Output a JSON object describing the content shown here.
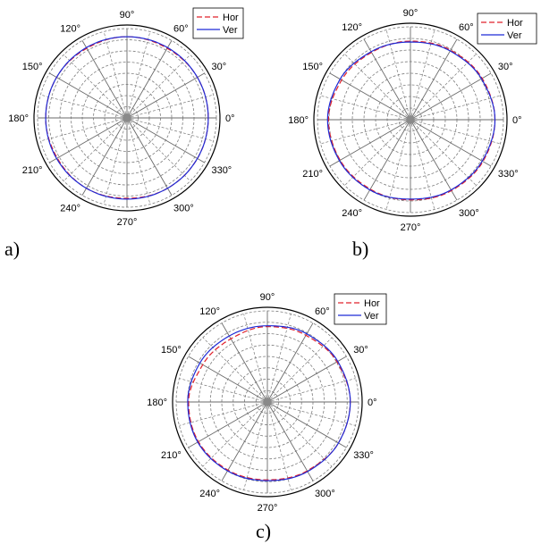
{
  "colors": {
    "hor": "#e0202a",
    "ver": "#1f2bd6",
    "grid": "#7d7d7d",
    "frame": "#000000"
  },
  "chart_data": [
    {
      "type": "polar-line",
      "panel_label": "a)",
      "angle_ticks": [
        "0°",
        "30°",
        "60°",
        "90°",
        "120°",
        "150°",
        "180°",
        "210°",
        "240°",
        "270°",
        "300°",
        "330°"
      ],
      "rlim": [
        0,
        1.1
      ],
      "grid": true,
      "legend": {
        "placement": "top-right"
      },
      "series": [
        {
          "name": "Hor",
          "style": "dashed",
          "theta": [
            0,
            30,
            60,
            90,
            120,
            150,
            180,
            210,
            240,
            270,
            300,
            330,
            360
          ],
          "r": [
            1.0,
            1.0,
            0.99,
            1.0,
            0.99,
            1.0,
            1.0,
            0.99,
            1.0,
            0.99,
            1.0,
            1.0,
            1.0
          ]
        },
        {
          "name": "Ver",
          "style": "solid",
          "theta": [
            0,
            30,
            60,
            90,
            120,
            150,
            180,
            210,
            240,
            270,
            300,
            330,
            360
          ],
          "r": [
            1.0,
            1.0,
            1.0,
            1.0,
            1.0,
            1.0,
            1.0,
            1.0,
            1.0,
            1.0,
            1.0,
            1.0,
            1.0
          ]
        }
      ]
    },
    {
      "type": "polar-line",
      "panel_label": "b)",
      "angle_ticks": [
        "0°",
        "30°",
        "60°",
        "90°",
        "120°",
        "150°",
        "180°",
        "210°",
        "240°",
        "270°",
        "300°",
        "330°"
      ],
      "rlim": [
        0,
        1.1
      ],
      "grid": true,
      "legend": {
        "placement": "top-right"
      },
      "series": [
        {
          "name": "Hor",
          "style": "dashed",
          "theta": [
            0,
            30,
            60,
            90,
            120,
            150,
            180,
            210,
            240,
            270,
            300,
            330,
            360
          ],
          "r": [
            1.0,
            0.98,
            0.95,
            0.93,
            0.92,
            0.94,
            0.97,
            0.96,
            0.95,
            0.95,
            0.97,
            0.99,
            1.0
          ]
        },
        {
          "name": "Ver",
          "style": "solid",
          "theta": [
            0,
            30,
            60,
            90,
            120,
            150,
            180,
            210,
            240,
            270,
            300,
            330,
            360
          ],
          "r": [
            1.0,
            0.97,
            0.94,
            0.92,
            0.93,
            0.96,
            0.98,
            0.97,
            0.96,
            0.94,
            0.96,
            0.98,
            1.0
          ]
        }
      ]
    },
    {
      "type": "polar-line",
      "panel_label": "c)",
      "angle_ticks": [
        "0°",
        "30°",
        "60°",
        "90°",
        "120°",
        "150°",
        "180°",
        "210°",
        "240°",
        "270°",
        "300°",
        "330°"
      ],
      "rlim": [
        0,
        1.1
      ],
      "grid": true,
      "legend": {
        "placement": "top-right"
      },
      "series": [
        {
          "name": "Hor",
          "style": "dashed",
          "theta": [
            0,
            30,
            60,
            90,
            120,
            150,
            180,
            210,
            240,
            270,
            300,
            330,
            360
          ],
          "r": [
            1.0,
            0.97,
            0.93,
            0.91,
            0.88,
            0.9,
            0.95,
            0.96,
            0.95,
            0.94,
            0.96,
            0.99,
            1.0
          ]
        },
        {
          "name": "Ver",
          "style": "solid",
          "theta": [
            0,
            30,
            60,
            90,
            120,
            150,
            180,
            210,
            240,
            270,
            300,
            330,
            360
          ],
          "r": [
            1.0,
            0.98,
            0.95,
            0.92,
            0.92,
            0.94,
            0.96,
            0.97,
            0.96,
            0.95,
            0.97,
            0.99,
            1.0
          ]
        }
      ]
    }
  ]
}
